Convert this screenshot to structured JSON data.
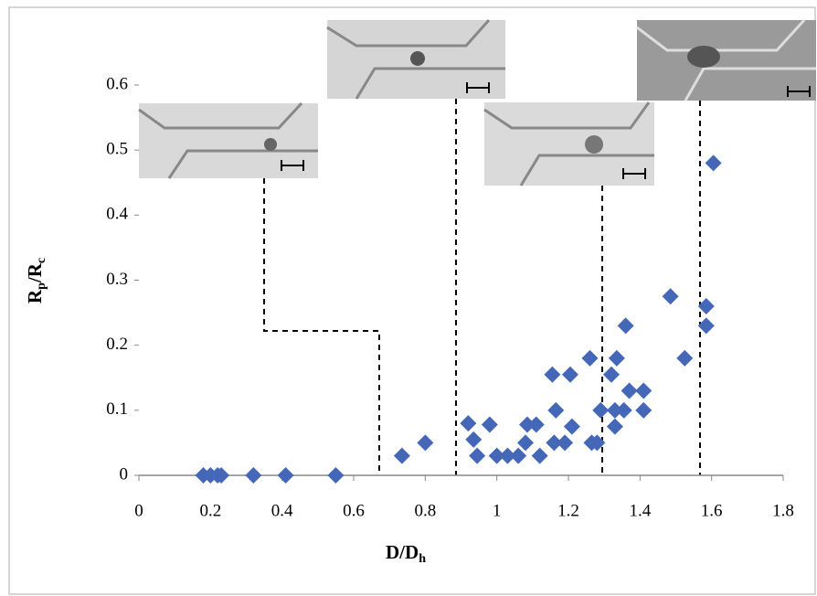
{
  "chart_data": {
    "type": "scatter",
    "x_label": [
      "D/D",
      "h"
    ],
    "y_label": [
      "R",
      "p",
      "/R",
      "c"
    ],
    "xlim": [
      0,
      1.8
    ],
    "ylim": [
      0,
      0.6
    ],
    "xticks": [
      0,
      0.2,
      0.4,
      0.6,
      0.8,
      1,
      1.2,
      1.4,
      1.6,
      1.8
    ],
    "yticks": [
      0,
      0.1,
      0.2,
      0.3,
      0.4,
      0.5,
      0.6
    ],
    "grid": false,
    "series": [
      {
        "color": "#4467b8",
        "x": [
          0.18,
          0.2,
          0.22,
          0.23,
          0.32,
          0.41,
          0.55,
          0.735,
          0.8,
          0.92,
          0.935,
          0.945,
          0.98,
          1.0,
          1.03,
          1.06,
          1.08,
          1.085,
          1.11,
          1.12,
          1.155,
          1.165,
          1.16,
          1.19,
          1.205,
          1.21,
          1.26,
          1.265,
          1.28,
          1.29,
          1.32,
          1.33,
          1.335,
          1.33,
          1.36,
          1.355,
          1.37,
          1.41,
          1.41,
          1.485,
          1.525,
          1.585,
          1.585,
          1.605
        ],
        "values": [
          0,
          0,
          0,
          0,
          0,
          0,
          0,
          0.03,
          0.05,
          0.08,
          0.055,
          0.03,
          0.078,
          0.03,
          0.03,
          0.03,
          0.05,
          0.078,
          0.078,
          0.03,
          0.155,
          0.1,
          0.05,
          0.05,
          0.155,
          0.075,
          0.18,
          0.05,
          0.05,
          0.1,
          0.155,
          0.075,
          0.18,
          0.1,
          0.23,
          0.1,
          0.13,
          0.1,
          0.13,
          0.275,
          0.18,
          0.26,
          0.23,
          0.48
        ]
      }
    ]
  }
}
